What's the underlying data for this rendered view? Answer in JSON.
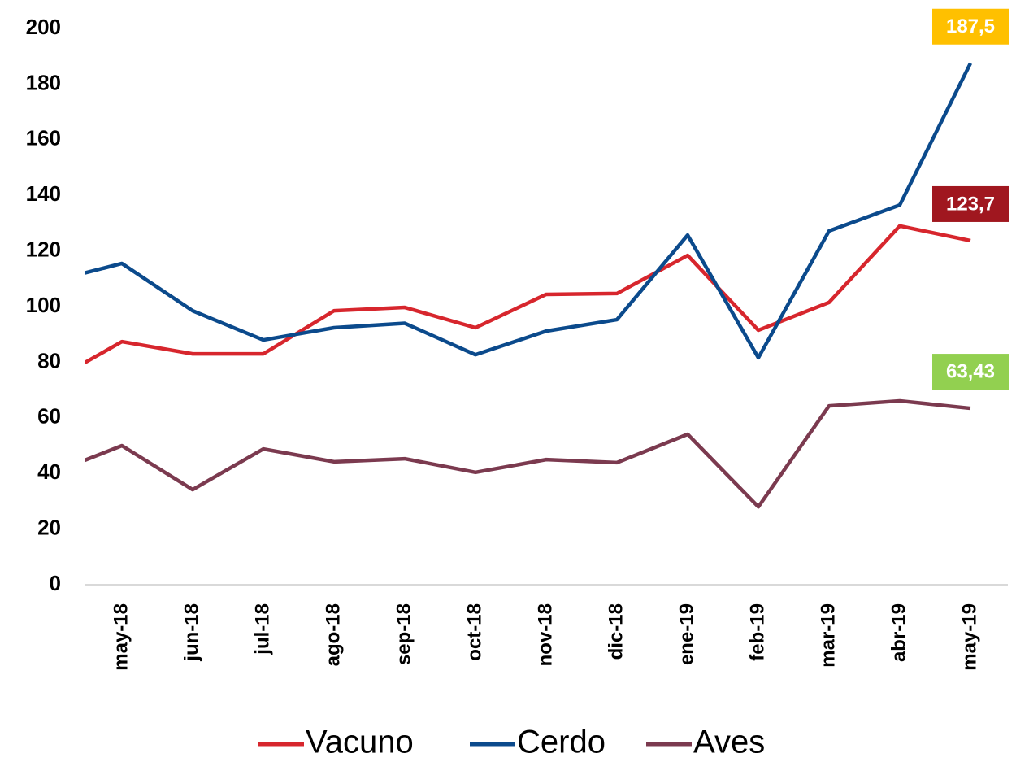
{
  "chart_data": {
    "type": "line",
    "categories": [
      null,
      "may-18",
      "jun-18",
      "jul-18",
      "ago-18",
      "sep-18",
      "oct-18",
      "nov-18",
      "dic-18",
      "ene-19",
      "feb-19",
      "mar-19",
      "abr-19",
      "may-19"
    ],
    "series": [
      {
        "name": "Vacuno",
        "color": "#d7262d",
        "label_color": "#a0171f",
        "values": [
          73,
          87.4,
          83,
          83,
          98.5,
          99.7,
          92.4,
          104.4,
          104.7,
          118.4,
          91.5,
          101.5,
          129,
          123.7
        ],
        "value_labels": [
          null,
          null,
          null,
          null,
          null,
          null,
          null,
          null,
          null,
          null,
          null,
          null,
          null,
          "123,7"
        ]
      },
      {
        "name": "Cerdo",
        "color": "#0b4a8c",
        "label_color": "#ffc000",
        "values": [
          109,
          115.5,
          98.5,
          88,
          92.4,
          94,
          82.7,
          91.2,
          95.3,
          125.7,
          81.6,
          127.2,
          136.5,
          187.5
        ],
        "value_labels": [
          null,
          null,
          null,
          null,
          null,
          null,
          null,
          null,
          null,
          null,
          null,
          null,
          null,
          "187,5"
        ]
      },
      {
        "name": "Aves",
        "color": "#7b3a4f",
        "label_color": "#92d050",
        "values": [
          40,
          50,
          34.2,
          48.8,
          44.2,
          45.3,
          40.4,
          45,
          43.9,
          54.1,
          28,
          64.3,
          66.1,
          63.43
        ],
        "value_labels": [
          null,
          null,
          null,
          null,
          null,
          null,
          null,
          null,
          null,
          null,
          null,
          null,
          null,
          "63,43"
        ]
      }
    ],
    "ylim": [
      0,
      200
    ],
    "yticks": [
      0,
      20,
      40,
      60,
      80,
      100,
      120,
      140,
      160,
      180,
      200
    ],
    "grid": false,
    "legend": "bottom"
  }
}
